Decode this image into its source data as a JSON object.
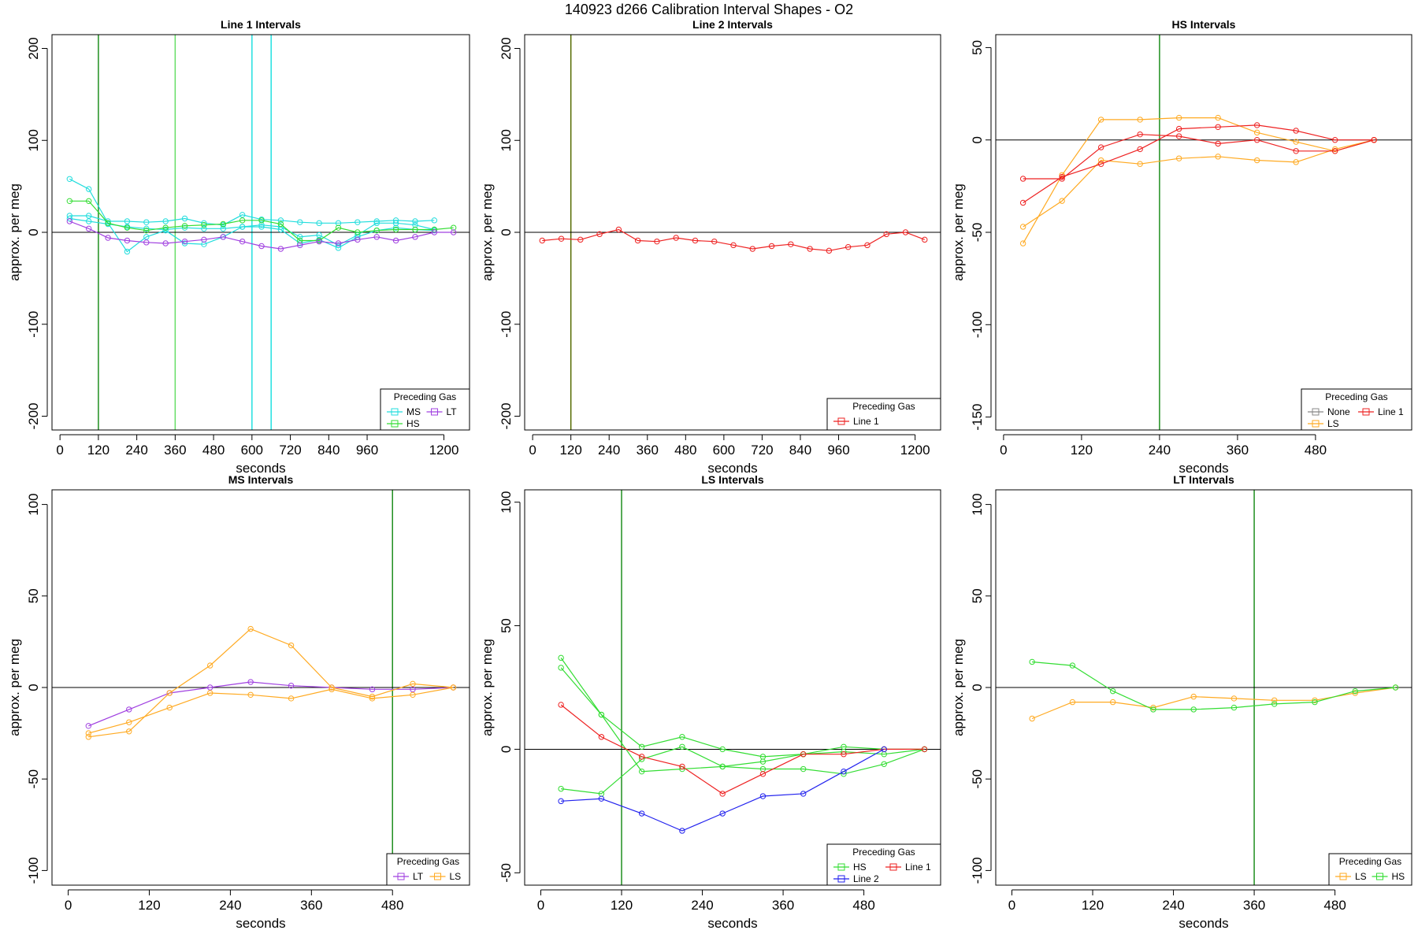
{
  "figure": {
    "title": "140923   d266   Calibration Interval Shapes - O2"
  },
  "chart_data": [
    {
      "type": "line",
      "title": "Line 1 Intervals",
      "xlabel": "seconds",
      "ylabel": "approx. per meg",
      "xlim": [
        -25,
        1280
      ],
      "ylim": [
        -215,
        215
      ],
      "xticks": [
        0,
        120,
        240,
        360,
        480,
        600,
        720,
        840,
        960,
        1200
      ],
      "yticks": [
        -200,
        -100,
        0,
        100,
        200
      ],
      "hline": 0,
      "vlines": [
        {
          "x": 120,
          "color": "#1f8f1f"
        },
        {
          "x": 360,
          "color": "#66dd66"
        },
        {
          "x": 600,
          "color": "#22e0e0"
        },
        {
          "x": 660,
          "color": "#22e0e0"
        }
      ],
      "legend": {
        "title": "Preceding Gas",
        "position": "bottom-right",
        "columns": 2,
        "entries": [
          {
            "label": "MS",
            "color": "#22dddd"
          },
          {
            "label": "LT",
            "color": "#a040e0"
          },
          {
            "label": "HS",
            "color": "#33dd33"
          }
        ]
      },
      "series": [
        {
          "name": "MS",
          "color": "#22dddd",
          "x": [
            30,
            90,
            150,
            210,
            270,
            330,
            390,
            450,
            510,
            570,
            630,
            690,
            750,
            810,
            870,
            930,
            990,
            1050,
            1110,
            1170
          ],
          "y": [
            58,
            47,
            10,
            -21,
            -5,
            2,
            -12,
            -13,
            -5,
            6,
            6,
            3,
            -12,
            -8,
            -17,
            -5,
            2,
            5,
            3,
            2
          ]
        },
        {
          "name": "MS",
          "color": "#22dddd",
          "x": [
            30,
            90,
            150,
            210,
            270,
            330,
            390,
            450,
            510,
            570,
            630,
            690,
            750,
            810,
            870,
            930,
            990,
            1050,
            1110,
            1170
          ],
          "y": [
            18,
            18,
            12,
            12,
            11,
            12,
            15,
            10,
            8,
            19,
            14,
            13,
            11,
            10,
            10,
            11,
            12,
            13,
            12,
            13
          ]
        },
        {
          "name": "MS",
          "color": "#22dddd",
          "x": [
            30,
            90,
            150,
            210,
            270,
            330,
            390,
            450,
            510,
            570,
            630,
            690,
            750,
            810,
            870,
            930,
            990,
            1050,
            1110,
            1170
          ],
          "y": [
            15,
            12,
            9,
            6,
            4,
            3,
            5,
            4,
            4,
            6,
            8,
            6,
            -5,
            -3,
            -14,
            -3,
            10,
            10,
            8,
            3
          ]
        },
        {
          "name": "HS",
          "color": "#33dd33",
          "x": [
            30,
            90,
            150,
            210,
            270,
            330,
            390,
            450,
            510,
            570,
            630,
            690,
            750,
            810,
            870,
            930,
            990,
            1050,
            1110,
            1170,
            1230
          ],
          "y": [
            34,
            34,
            10,
            5,
            2,
            5,
            7,
            8,
            9,
            13,
            13,
            9,
            -9,
            -9,
            5,
            0,
            2,
            3,
            3,
            3,
            5
          ]
        },
        {
          "name": "LT",
          "color": "#a040e0",
          "x": [
            30,
            90,
            150,
            210,
            270,
            330,
            390,
            450,
            510,
            570,
            630,
            690,
            750,
            810,
            870,
            930,
            990,
            1050,
            1110,
            1170,
            1230
          ],
          "y": [
            12,
            4,
            -6,
            -9,
            -11,
            -12,
            -10,
            -8,
            -5,
            -10,
            -15,
            -18,
            -14,
            -10,
            -12,
            -8,
            -5,
            -9,
            -5,
            0,
            0
          ]
        }
      ]
    },
    {
      "type": "line",
      "title": "Line 2 Intervals",
      "xlabel": "seconds",
      "ylabel": "approx. per meg",
      "xlim": [
        -25,
        1280
      ],
      "ylim": [
        -215,
        215
      ],
      "xticks": [
        0,
        120,
        240,
        360,
        480,
        600,
        720,
        840,
        960,
        1200
      ],
      "yticks": [
        -200,
        -100,
        0,
        100,
        200
      ],
      "hline": 0,
      "vlines": [
        {
          "x": 120,
          "color": "#556b00"
        }
      ],
      "legend": {
        "title": "Preceding Gas",
        "position": "bottom-right",
        "columns": 1,
        "entries": [
          {
            "label": "Line 1",
            "color": "#ee2222"
          }
        ]
      },
      "series": [
        {
          "name": "Line 1",
          "color": "#ee2222",
          "x": [
            30,
            90,
            150,
            210,
            270,
            330,
            390,
            450,
            510,
            570,
            630,
            690,
            750,
            810,
            870,
            930,
            990,
            1050,
            1110,
            1170,
            1230
          ],
          "y": [
            -9,
            -7,
            -8,
            -2,
            3,
            -9,
            -10,
            -6,
            -9,
            -10,
            -14,
            -18,
            -15,
            -13,
            -18,
            -20,
            -16,
            -14,
            -2,
            0,
            -8
          ]
        }
      ]
    },
    {
      "type": "line",
      "title": "HS Intervals",
      "xlabel": "seconds",
      "ylabel": "approx. per meg",
      "xlim": [
        -12,
        628
      ],
      "ylim": [
        -157,
        57
      ],
      "xticks": [
        0,
        120,
        240,
        360,
        480
      ],
      "yticks": [
        -150,
        -100,
        -50,
        0,
        50
      ],
      "hline": 0,
      "vlines": [
        {
          "x": 240,
          "color": "#1f8f1f"
        }
      ],
      "legend": {
        "title": "Preceding Gas",
        "position": "bottom-right",
        "columns": 2,
        "entries": [
          {
            "label": "None",
            "color": "#888888"
          },
          {
            "label": "Line 1",
            "color": "#ee2222"
          },
          {
            "label": "LS",
            "color": "#ffaa22"
          }
        ]
      },
      "series": [
        {
          "name": "LS",
          "color": "#ffaa22",
          "x": [
            30,
            90,
            150,
            210,
            270,
            330,
            390,
            450,
            510,
            570
          ],
          "y": [
            -56,
            -19,
            11,
            11,
            12,
            12,
            4,
            -1,
            -6,
            0
          ]
        },
        {
          "name": "LS",
          "color": "#ffaa22",
          "x": [
            30,
            90,
            150,
            210,
            270,
            330,
            390,
            450,
            510,
            570
          ],
          "y": [
            -47,
            -33,
            -11,
            -13,
            -10,
            -9,
            -11,
            -12,
            -5,
            0
          ]
        },
        {
          "name": "Line 1",
          "color": "#ee2222",
          "x": [
            30,
            90,
            150,
            210,
            270,
            330,
            390,
            450,
            510,
            570
          ],
          "y": [
            -21,
            -21,
            -4,
            3,
            2,
            -2,
            0,
            -6,
            -6,
            0
          ]
        },
        {
          "name": "Line 1",
          "color": "#ee2222",
          "x": [
            30,
            90,
            150,
            210,
            270,
            330,
            390,
            450,
            510,
            570
          ],
          "y": [
            -34,
            -20,
            -13,
            -5,
            6,
            7,
            8,
            5,
            0,
            0
          ]
        }
      ]
    },
    {
      "type": "line",
      "title": "MS Intervals",
      "xlabel": "seconds",
      "ylabel": "approx. per meg",
      "xlim": [
        -24,
        594
      ],
      "ylim": [
        -108,
        108
      ],
      "xticks": [
        0,
        120,
        240,
        360,
        480
      ],
      "yticks": [
        -100,
        -50,
        0,
        50,
        100
      ],
      "hline": 0,
      "vlines": [
        {
          "x": 480,
          "color": "#1f8f1f"
        }
      ],
      "legend": {
        "title": "Preceding Gas",
        "position": "bottom-right",
        "columns": 2,
        "entries": [
          {
            "label": "LT",
            "color": "#a040e0"
          },
          {
            "label": "LS",
            "color": "#ffaa22"
          }
        ]
      },
      "series": [
        {
          "name": "LT",
          "color": "#a040e0",
          "x": [
            30,
            90,
            150,
            210,
            270,
            330,
            390,
            450,
            510,
            570
          ],
          "y": [
            -21,
            -12,
            -3,
            0,
            3,
            1,
            0,
            -1,
            -1,
            0
          ]
        },
        {
          "name": "LS",
          "color": "#ffaa22",
          "x": [
            30,
            90,
            150,
            210,
            270,
            330,
            390,
            450,
            510,
            570
          ],
          "y": [
            -27,
            -24,
            -3,
            12,
            32,
            23,
            0,
            -5,
            2,
            0
          ]
        },
        {
          "name": "LS",
          "color": "#ffaa22",
          "x": [
            30,
            90,
            150,
            210,
            270,
            330,
            390,
            450,
            510,
            570
          ],
          "y": [
            -25,
            -19,
            -11,
            -3,
            -4,
            -6,
            -1,
            -6,
            -4,
            0
          ]
        }
      ]
    },
    {
      "type": "line",
      "title": "LS Intervals",
      "xlabel": "seconds",
      "ylabel": "approx. per meg",
      "xlim": [
        -24,
        594
      ],
      "ylim": [
        -55,
        105
      ],
      "xticks": [
        0,
        120,
        240,
        360,
        480
      ],
      "yticks": [
        -50,
        0,
        50,
        100
      ],
      "hline": 0,
      "vlines": [
        {
          "x": 120,
          "color": "#1f8f1f"
        }
      ],
      "legend": {
        "title": "Preceding Gas",
        "position": "bottom-right",
        "columns": 2,
        "entries": [
          {
            "label": "HS",
            "color": "#33dd33"
          },
          {
            "label": "Line 1",
            "color": "#ee2222"
          },
          {
            "label": "Line 2",
            "color": "#2222ee"
          }
        ]
      },
      "series": [
        {
          "name": "HS",
          "color": "#33dd33",
          "x": [
            30,
            90,
            150,
            210,
            270,
            330,
            390,
            450,
            510,
            570
          ],
          "y": [
            37,
            14,
            1,
            5,
            0,
            -3,
            -2,
            -1,
            -2,
            0
          ]
        },
        {
          "name": "HS",
          "color": "#33dd33",
          "x": [
            30,
            90,
            150,
            210,
            270,
            330,
            390,
            450,
            510,
            570
          ],
          "y": [
            33,
            14,
            -9,
            -8,
            -7,
            -8,
            -8,
            -10,
            -6,
            0
          ]
        },
        {
          "name": "HS",
          "color": "#33dd33",
          "x": [
            30,
            90,
            150,
            210,
            270,
            330,
            390,
            450,
            510,
            570
          ],
          "y": [
            -16,
            -18,
            -4,
            1,
            -7,
            -5,
            -2,
            1,
            0,
            0
          ]
        },
        {
          "name": "Line 1",
          "color": "#ee2222",
          "x": [
            30,
            90,
            150,
            210,
            270,
            330,
            390,
            450,
            510,
            570
          ],
          "y": [
            18,
            5,
            -3,
            -7,
            -18,
            -10,
            -2,
            -2,
            0,
            0
          ]
        },
        {
          "name": "Line 2",
          "color": "#2222ee",
          "x": [
            30,
            90,
            150,
            210,
            270,
            330,
            390,
            450,
            510
          ],
          "y": [
            -21,
            -20,
            -26,
            -33,
            -26,
            -19,
            -18,
            -9,
            0
          ]
        }
      ]
    },
    {
      "type": "line",
      "title": "LT Intervals",
      "xlabel": "seconds",
      "ylabel": "approx. per meg",
      "xlim": [
        -24,
        594
      ],
      "ylim": [
        -108,
        108
      ],
      "xticks": [
        0,
        120,
        240,
        360,
        480
      ],
      "yticks": [
        -100,
        -50,
        0,
        50,
        100
      ],
      "hline": 0,
      "vlines": [
        {
          "x": 360,
          "color": "#1f8f1f"
        }
      ],
      "legend": {
        "title": "Preceding Gas",
        "position": "bottom-right",
        "columns": 2,
        "entries": [
          {
            "label": "LS",
            "color": "#ffaa22"
          },
          {
            "label": "HS",
            "color": "#33dd33"
          }
        ]
      },
      "series": [
        {
          "name": "LS",
          "color": "#ffaa22",
          "x": [
            30,
            90,
            150,
            210,
            270,
            330,
            390,
            450,
            510,
            570
          ],
          "y": [
            -17,
            -8,
            -8,
            -11,
            -5,
            -6,
            -7,
            -7,
            -3,
            0
          ]
        },
        {
          "name": "HS",
          "color": "#33dd33",
          "x": [
            30,
            90,
            150,
            210,
            270,
            330,
            390,
            450,
            510,
            570
          ],
          "y": [
            14,
            12,
            -2,
            -12,
            -12,
            -11,
            -9,
            -8,
            -2,
            0
          ]
        }
      ]
    }
  ]
}
